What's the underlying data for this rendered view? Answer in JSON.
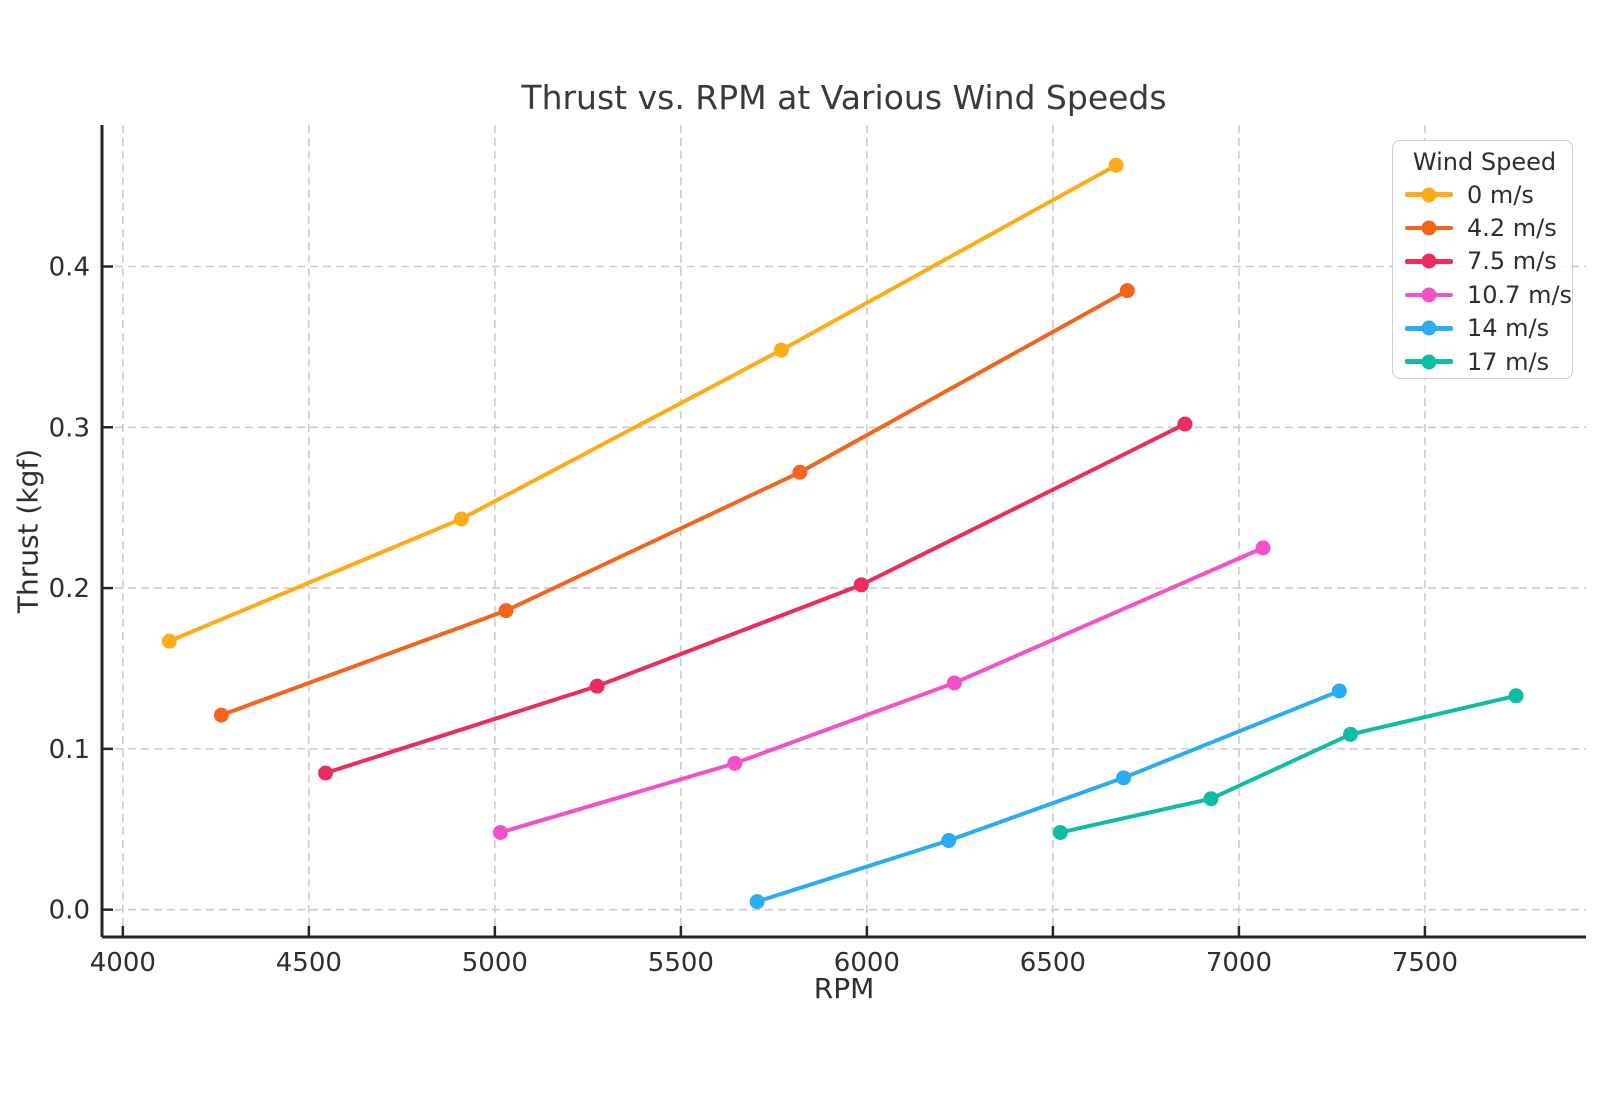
{
  "chart_data": {
    "type": "line",
    "title": "Thrust vs. RPM at Various Wind Speeds",
    "xlabel": "RPM",
    "ylabel": "Thrust (kgf)",
    "legend_title": "Wind Speed",
    "legend_position": "upper right",
    "grid": true,
    "xlim": [
      3944,
      7933
    ],
    "ylim": [
      -0.017,
      0.488
    ],
    "x_ticks": [
      4000,
      4500,
      5000,
      5500,
      6000,
      6500,
      7000,
      7500
    ],
    "x_tick_labels": [
      "4000",
      "4500",
      "5000",
      "5500",
      "6000",
      "6500",
      "7000",
      "7500"
    ],
    "y_ticks": [
      0.0,
      0.1,
      0.2,
      0.3,
      0.4
    ],
    "y_tick_labels": [
      "0.0",
      "0.1",
      "0.2",
      "0.3",
      "0.4"
    ],
    "series": [
      {
        "name": "0 m/s",
        "color": "#ffab17",
        "points": [
          [
            4125,
            0.167
          ],
          [
            4910,
            0.243
          ],
          [
            5770,
            0.348
          ],
          [
            6670,
            0.463
          ]
        ]
      },
      {
        "name": "4.2 m/s",
        "color": "#f4641d",
        "points": [
          [
            4265,
            0.121
          ],
          [
            5030,
            0.186
          ],
          [
            5820,
            0.272
          ],
          [
            6700,
            0.385
          ]
        ]
      },
      {
        "name": "7.5 m/s",
        "color": "#eb2c5c",
        "points": [
          [
            4545,
            0.085
          ],
          [
            5275,
            0.139
          ],
          [
            5985,
            0.202
          ],
          [
            6855,
            0.302
          ]
        ]
      },
      {
        "name": "10.7 m/s",
        "color": "#f351c7",
        "points": [
          [
            5015,
            0.048
          ],
          [
            5645,
            0.091
          ],
          [
            6235,
            0.141
          ],
          [
            7065,
            0.225
          ]
        ]
      },
      {
        "name": "14 m/s",
        "color": "#2aacf2",
        "points": [
          [
            5705,
            0.005
          ],
          [
            6220,
            0.043
          ],
          [
            6690,
            0.082
          ],
          [
            7270,
            0.136
          ]
        ]
      },
      {
        "name": "17 m/s",
        "color": "#10bca4",
        "points": [
          [
            6520,
            0.048
          ],
          [
            6925,
            0.069
          ],
          [
            7300,
            0.109
          ],
          [
            7745,
            0.133
          ]
        ]
      }
    ],
    "styles": {
      "grid_color": "#cccccc",
      "spine_color": "#262626",
      "tick_label_color": "#2e2e2e",
      "title_color": "#3a3a3a",
      "background": "#ffffff"
    }
  }
}
